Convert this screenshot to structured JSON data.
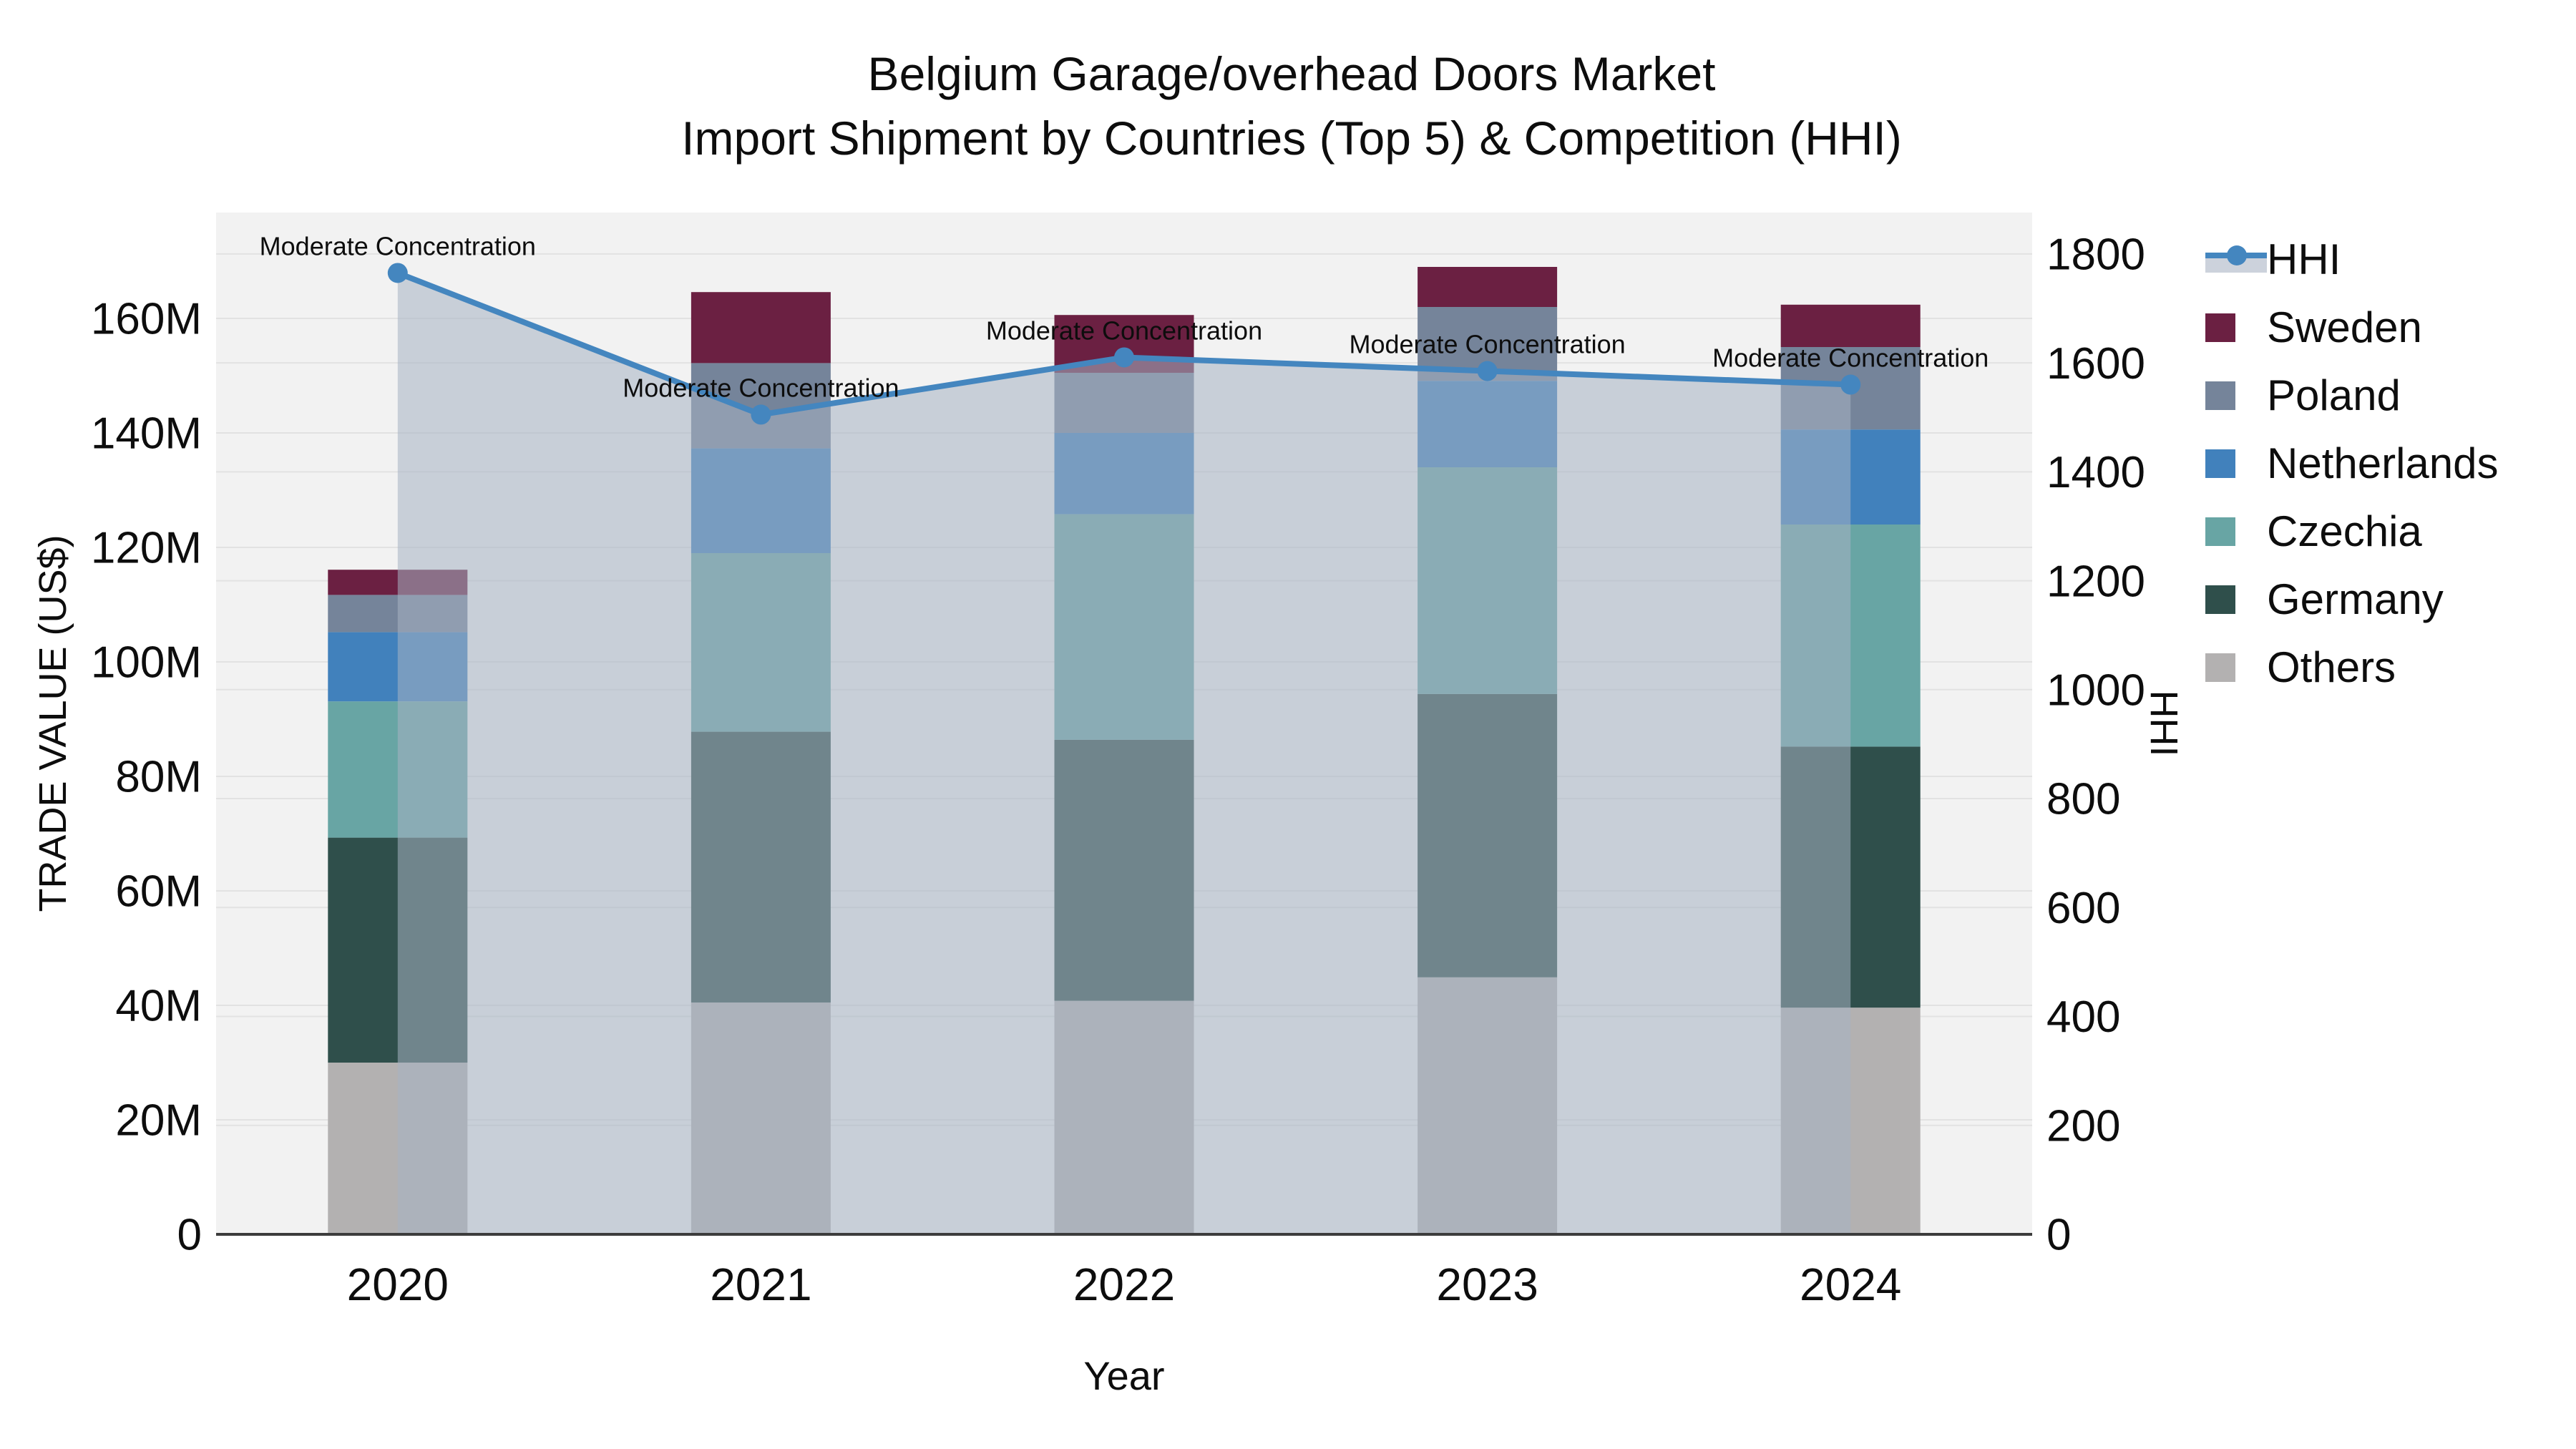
{
  "title": {
    "line1": "Belgium Garage/overhead Doors Market",
    "line2": "Import Shipment by Countries (Top 5) & Competition (HHI)"
  },
  "legend": {
    "items": [
      {
        "label": "HHI",
        "type": "line",
        "color": "#4486bf"
      },
      {
        "label": "Sweden",
        "type": "box",
        "color": "#6b2042"
      },
      {
        "label": "Poland",
        "type": "box",
        "color": "#75849a"
      },
      {
        "label": "Netherlands",
        "type": "box",
        "color": "#4181bc"
      },
      {
        "label": "Czechia",
        "type": "box",
        "color": "#68a5a4"
      },
      {
        "label": "Germany",
        "type": "box",
        "color": "#2f4f4b"
      },
      {
        "label": "Others",
        "type": "box",
        "color": "#b3b1b1"
      }
    ]
  },
  "colors": {
    "plot_background": "#f2f2f2",
    "page_background": "#ffffff",
    "gridline": "#e2e2e2",
    "axis_line": "#3c3c3c",
    "hhi_line": "#4486bf",
    "hhi_area_fill": "rgba(166,178,195,0.55)",
    "text": "#0d0d0d"
  },
  "chart_data": {
    "type": "combo: stacked-bar + line-area (dual axis)",
    "title": "Belgium Garage/overhead Doors Market — Import Shipment by Countries (Top 5) & Competition (HHI)",
    "categories": [
      "2020",
      "2021",
      "2022",
      "2023",
      "2024"
    ],
    "xlabel": "Year",
    "ylabel_left": "TRADE VALUE (US$)",
    "ylabel_right": "HHI",
    "stack_order_bottom_to_top": [
      "Others",
      "Germany",
      "Czechia",
      "Netherlands",
      "Poland",
      "Sweden"
    ],
    "bar_unit": "M US$",
    "series": [
      {
        "name": "Sweden",
        "color": "#6b2042",
        "values": [
          4.4,
          12.4,
          10.1,
          7.0,
          7.4
        ]
      },
      {
        "name": "Poland",
        "color": "#75849a",
        "values": [
          6.5,
          14.9,
          10.5,
          12.9,
          14.4
        ]
      },
      {
        "name": "Netherlands",
        "color": "#4181bc",
        "values": [
          12.1,
          18.3,
          14.2,
          15.1,
          16.6
        ]
      },
      {
        "name": "Czechia",
        "color": "#68a5a4",
        "values": [
          23.8,
          31.2,
          39.4,
          39.6,
          38.8
        ]
      },
      {
        "name": "Germany",
        "color": "#2f4f4b",
        "values": [
          39.3,
          47.3,
          45.6,
          49.5,
          45.6
        ]
      },
      {
        "name": "Others",
        "color": "#b3b1b1",
        "values": [
          30.0,
          40.5,
          40.8,
          44.9,
          39.6
        ]
      }
    ],
    "bar_totals": [
      116.1,
      164.6,
      160.6,
      169.0,
      162.4
    ],
    "line_series": {
      "name": "HHI",
      "color": "#4486bf",
      "area_fill": "rgba(166,178,195,0.55)",
      "values": [
        1765,
        1505,
        1610,
        1585,
        1560
      ]
    },
    "annotations": [
      {
        "x": "2020",
        "text": "Moderate Concentration"
      },
      {
        "x": "2021",
        "text": "Moderate Concentration"
      },
      {
        "x": "2022",
        "text": "Moderate Concentration"
      },
      {
        "x": "2023",
        "text": "Moderate Concentration"
      },
      {
        "x": "2024",
        "text": "Moderate Concentration"
      }
    ],
    "axes": {
      "x": {
        "label": "Year",
        "ticks": [
          "2020",
          "2021",
          "2022",
          "2023",
          "2024"
        ]
      },
      "left": {
        "label": "TRADE VALUE (US$)",
        "range": [
          0,
          178.5
        ],
        "ticks": [
          {
            "value": 0,
            "label": "0"
          },
          {
            "value": 20,
            "label": "20M"
          },
          {
            "value": 40,
            "label": "40M"
          },
          {
            "value": 60,
            "label": "60M"
          },
          {
            "value": 80,
            "label": "80M"
          },
          {
            "value": 100,
            "label": "100M"
          },
          {
            "value": 120,
            "label": "120M"
          },
          {
            "value": 140,
            "label": "140M"
          },
          {
            "value": 160,
            "label": "160M"
          }
        ]
      },
      "right": {
        "label": "HHI",
        "range": [
          0,
          1876
        ],
        "ticks": [
          {
            "value": 0,
            "label": "0"
          },
          {
            "value": 200,
            "label": "200"
          },
          {
            "value": 400,
            "label": "400"
          },
          {
            "value": 600,
            "label": "600"
          },
          {
            "value": 800,
            "label": "800"
          },
          {
            "value": 1000,
            "label": "1000"
          },
          {
            "value": 1200,
            "label": "1200"
          },
          {
            "value": 1400,
            "label": "1400"
          },
          {
            "value": 1600,
            "label": "1600"
          },
          {
            "value": 1800,
            "label": "1800"
          }
        ]
      },
      "grid": true,
      "legend_position": "right-top"
    }
  }
}
